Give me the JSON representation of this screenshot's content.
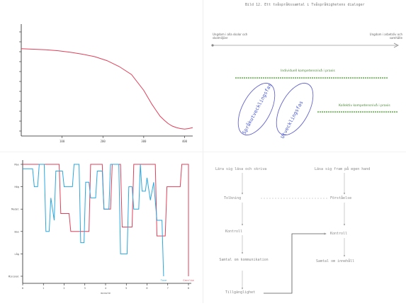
{
  "chart_data": [
    {
      "type": "line",
      "title": "",
      "xlabel": "",
      "ylabel": "",
      "x_ticks": [
        "100",
        "200",
        "300",
        "400"
      ],
      "y_ticks": [
        "",
        "",
        "",
        "",
        "",
        "",
        "",
        "",
        "",
        "",
        ""
      ],
      "xlim": [
        0,
        420
      ],
      "ylim": [
        0,
        11
      ],
      "series": [
        {
          "color": "#e0405a",
          "x": [
            0,
            30,
            60,
            90,
            120,
            150,
            180,
            210,
            240,
            270,
            300,
            310,
            320,
            330,
            340,
            350,
            360,
            370,
            380,
            390,
            400,
            410,
            420
          ],
          "y": [
            8.8,
            8.75,
            8.7,
            8.6,
            8.45,
            8.25,
            8.0,
            7.6,
            7.0,
            6.2,
            4.6,
            3.9,
            3.2,
            2.6,
            2.0,
            1.6,
            1.25,
            1.0,
            0.85,
            0.75,
            0.7,
            0.75,
            0.85
          ]
        }
      ],
      "grid": false
    },
    {
      "type": "line",
      "title": "",
      "xlabel": "minute",
      "ylabel": "",
      "y_categories": [
        "Max",
        "Hög",
        "Medel",
        "Bas",
        "Låg",
        "Minimal"
      ],
      "x_ticks": [
        "0",
        "1",
        "2",
        "3",
        "4",
        "5",
        "6",
        "7",
        "8"
      ],
      "xlim": [
        0,
        100
      ],
      "series": [
        {
          "color": "#e0405a",
          "end_label": "Cecilia",
          "points": [
            [
              0,
              0
            ],
            [
              22,
              0
            ],
            [
              23,
              2.2
            ],
            [
              28,
              2.2
            ],
            [
              29,
              3
            ],
            [
              40,
              3
            ],
            [
              41,
              0
            ],
            [
              48,
              0
            ],
            [
              49,
              2
            ],
            [
              53,
              2
            ],
            [
              54,
              0
            ],
            [
              59,
              0
            ],
            [
              60,
              2.8
            ],
            [
              66,
              2.8
            ],
            [
              67,
              0
            ],
            [
              80,
              0
            ],
            [
              81,
              3.2
            ],
            [
              86,
              3.2
            ],
            [
              87,
              1
            ],
            [
              95,
              1
            ],
            [
              96,
              0
            ],
            [
              100,
              0
            ],
            [
              100,
              5
            ]
          ]
        },
        {
          "color": "#2aa8e0",
          "end_label": "Tove",
          "points": [
            [
              0,
              0.2
            ],
            [
              6,
              0.2
            ],
            [
              7,
              1
            ],
            [
              9,
              1
            ],
            [
              10,
              0
            ],
            [
              13,
              0
            ],
            [
              14,
              3
            ],
            [
              16,
              3
            ],
            [
              17,
              1.5
            ],
            [
              19,
              2.5
            ],
            [
              20,
              0.3
            ],
            [
              24,
              0.3
            ],
            [
              25,
              1
            ],
            [
              30,
              1
            ],
            [
              31,
              0
            ],
            [
              34,
              0
            ],
            [
              35,
              3.5
            ],
            [
              37,
              3.5
            ],
            [
              38,
              0.8
            ],
            [
              40,
              0.8
            ],
            [
              41,
              1.5
            ],
            [
              44,
              1.5
            ],
            [
              45,
              0.3
            ],
            [
              48,
              0.3
            ],
            [
              49,
              2
            ],
            [
              52,
              2
            ],
            [
              53,
              0
            ],
            [
              58,
              0
            ],
            [
              59,
              4
            ],
            [
              63,
              4
            ],
            [
              64,
              1
            ],
            [
              66,
              1
            ],
            [
              67,
              2
            ],
            [
              70,
              2
            ],
            [
              71,
              0
            ],
            [
              72,
              1.2
            ],
            [
              74,
              1.2
            ],
            [
              75,
              0.6
            ],
            [
              77,
              1.6
            ],
            [
              79,
              0.8
            ],
            [
              81,
              2.5
            ],
            [
              84,
              2.5
            ],
            [
              85,
              5
            ]
          ]
        }
      ]
    }
  ],
  "diagram_top": {
    "title": "Bild 12. Ett tvåspråkssamtal i Tvåspråkighetens dialoger",
    "left_end_label": "Ungdom i alla skolor och skolmiljöer",
    "right_end_label": "Ungdom i arbetsliv och samhälle",
    "green_line_top_label": "Individuell kompetensnivå i praxis",
    "green_line_bottom_label": "Kollektiv kompetensnivå i praxis",
    "circle_left_label": "Språkutvecklingsfas",
    "circle_right_label": "Utvecklingsfas"
  },
  "flow": {
    "box_a": "Lära sig läsa och skriva",
    "box_b": "Tolkning",
    "box_c": "Kontroll",
    "box_d": "Samtal om kommunikation",
    "box_e": "Tillgänglighet",
    "box_f": "Läsa sig fram på egen hand",
    "box_g": "Förståelse",
    "box_h": "Kontroll",
    "box_i": "Samtal om innehåll"
  },
  "colors": {
    "red": "#e0405a",
    "blue": "#2aa8e0",
    "green": "#55b03c",
    "purple": "#5555cc",
    "gray": "#9a9a9a"
  }
}
